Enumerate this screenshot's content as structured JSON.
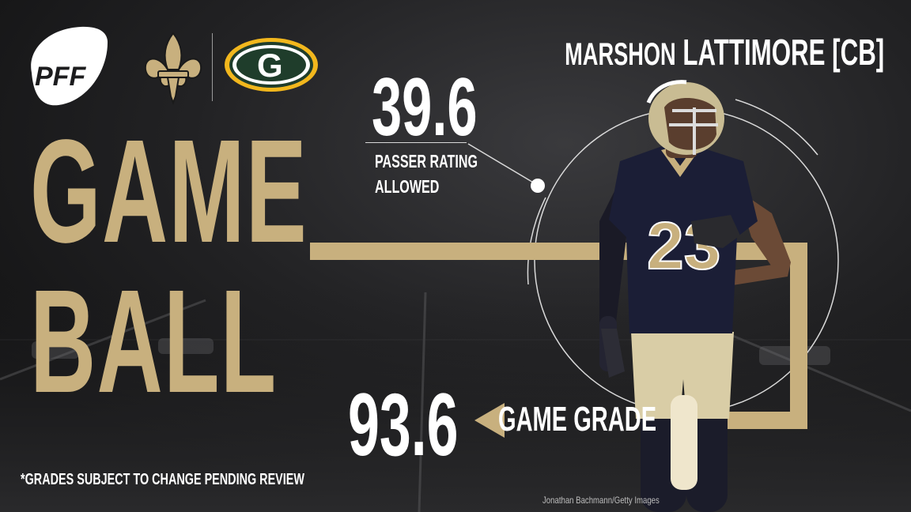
{
  "brand": "PFF",
  "title": {
    "line1": "GAME",
    "line2": "BALL"
  },
  "player": {
    "first_name": "MARSHON",
    "last_name_position": "LATTIMORE [CB]",
    "jersey_number": "23"
  },
  "teams": {
    "team": "Saints",
    "opponent": "Packers",
    "opponent_mark": "G"
  },
  "stat": {
    "value": "39.6",
    "label_line1": "PASSER RATING",
    "label_line2": "ALLOWED"
  },
  "grade": {
    "value": "93.6",
    "label": "GAME GRADE"
  },
  "disclaimer": "*GRADES SUBJECT TO CHANGE PENDING REVIEW",
  "photo_credit": "Jonathan Bachmann/Getty Images",
  "colors": {
    "gold": "#c8b07e",
    "background": "#1c1c1e",
    "packers_green": "#1f3d2b",
    "packers_gold": "#f2b71d"
  },
  "icons": [
    "pff-logo",
    "saints-fleur-de-lis-icon",
    "packers-g-icon",
    "arrow-left-icon"
  ]
}
